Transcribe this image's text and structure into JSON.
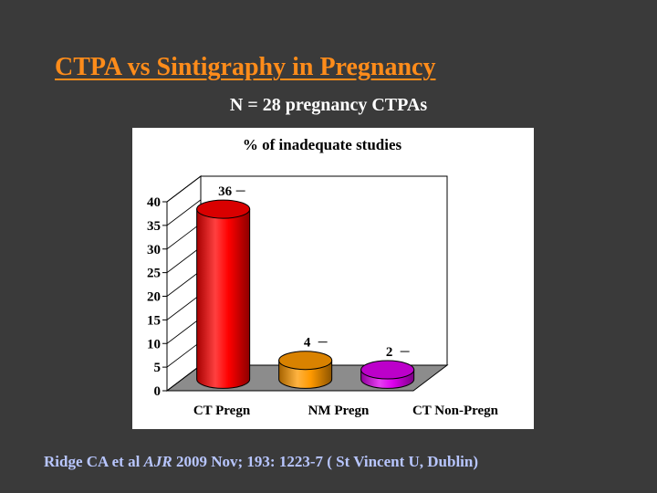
{
  "slide": {
    "title": "CTPA vs Sintigraphy in Pregnancy",
    "subtitle": "N = 28 pregnancy CTPAs",
    "citation": {
      "authors": "Ridge CA et al",
      "journal": "AJR",
      "details": "2009 Nov; 193: 1223-7 ( St Vincent U, Dublin)"
    }
  },
  "chart_data": {
    "type": "bar",
    "title": "% of inadequate studies",
    "categories": [
      "CT Pregn",
      "NM Pregn",
      "CT Non-Pregn"
    ],
    "values": [
      36,
      4,
      2
    ],
    "value_labels": [
      "36",
      "4",
      "2"
    ],
    "colors": [
      "#ff0000",
      "#ff9900",
      "#dd00ee"
    ],
    "yticks": [
      "0",
      "5",
      "10",
      "15",
      "20",
      "25",
      "30",
      "35",
      "40"
    ],
    "ylim": [
      0,
      40
    ],
    "bar_style": "3d-cylinder",
    "grid": false,
    "legend": "none"
  }
}
